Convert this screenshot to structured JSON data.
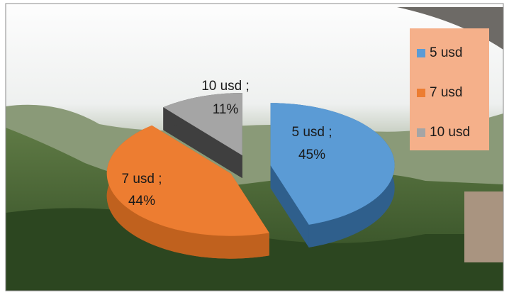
{
  "chart_data": {
    "type": "pie",
    "categories": [
      "5 usd",
      "7 usd",
      "10 usd"
    ],
    "values": [
      45,
      44,
      11
    ],
    "value_labels": [
      "45%",
      "44%",
      "11%"
    ],
    "label_separator": ";",
    "colors": [
      "#5b9bd5",
      "#ed7d31",
      "#a5a5a5"
    ],
    "side_colors": [
      "#2f5f8c",
      "#c0611e",
      "#3f3f3f"
    ],
    "legend": "right"
  }
}
